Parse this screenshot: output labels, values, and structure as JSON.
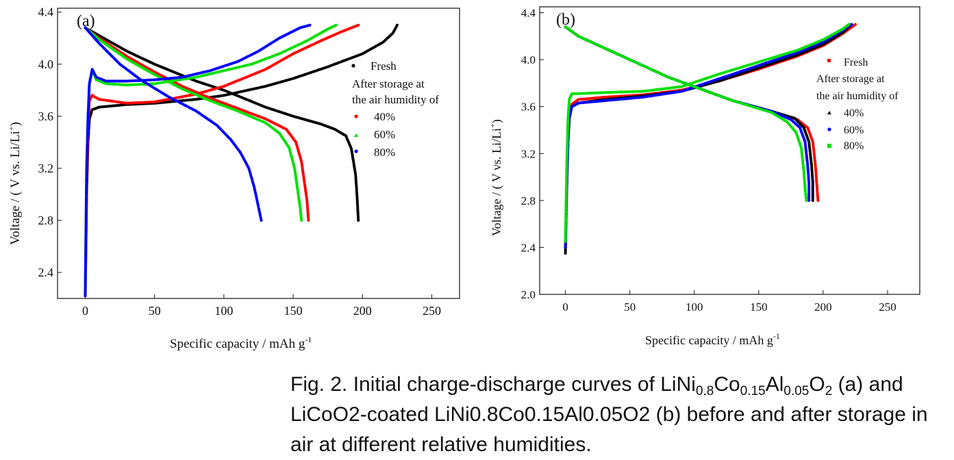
{
  "charts": [
    {
      "panel_label": "(a)",
      "xlabel": "Specific capacity / mAh g",
      "xlabel_sup": "-1",
      "ylabel_main": "Voltage / ( V vs. Li/Li",
      "ylabel_sup": "+",
      "ylabel_end": ")",
      "legend": {
        "fresh": "Fresh",
        "header_line1": "After storage at",
        "header_line2": "the air humidity of",
        "items": [
          "40%",
          "60%",
          "80%"
        ]
      }
    },
    {
      "panel_label": "(b)",
      "xlabel": "Specific capacity / mAh g",
      "xlabel_sup": "-1",
      "ylabel_main": "Voltage / ( V vs. Li/Li",
      "ylabel_sup": "+",
      "ylabel_end": ")",
      "legend": {
        "fresh": "Fresh",
        "header_line1": "After storage at",
        "header_line2": "the air humidity of",
        "items": [
          "40%",
          "60%",
          "80%"
        ]
      }
    }
  ],
  "caption": {
    "prefix": "Fig. 2. Initial charge-discharge curves of LiNi",
    "s1": "0.8",
    "t2": "Co",
    "s2": "0.15",
    "t3": "Al",
    "s3": "0.05",
    "t4": "O",
    "s4": "2",
    "suffix": " (a) and LiCoO2-coated LiNi0.8Co0.15Al0.05O2 (b) before and after storage in air at different relative humidities."
  },
  "chart_data": [
    {
      "type": "scatter",
      "xlim": [
        -20,
        270
      ],
      "ylim": [
        2.2,
        4.43
      ],
      "xticks": [
        0,
        50,
        100,
        150,
        200,
        250
      ],
      "yticks": [
        2.4,
        2.8,
        3.2,
        3.6,
        4.0,
        4.4
      ],
      "grid": false,
      "legend_position": "right",
      "series": [
        {
          "name": "Fresh",
          "color": "#000000",
          "charge": [
            [
              0,
              2.22
            ],
            [
              1,
              3.0
            ],
            [
              2,
              3.4
            ],
            [
              3,
              3.58
            ],
            [
              5,
              3.65
            ],
            [
              10,
              3.67
            ],
            [
              30,
              3.69
            ],
            [
              50,
              3.7
            ],
            [
              80,
              3.73
            ],
            [
              100,
              3.76
            ],
            [
              130,
              3.83
            ],
            [
              150,
              3.89
            ],
            [
              175,
              3.98
            ],
            [
              200,
              4.08
            ],
            [
              215,
              4.17
            ],
            [
              222,
              4.24
            ],
            [
              225,
              4.3
            ]
          ],
          "discharge": [
            [
              0,
              4.28
            ],
            [
              10,
              4.22
            ],
            [
              30,
              4.1
            ],
            [
              50,
              4.0
            ],
            [
              80,
              3.87
            ],
            [
              100,
              3.8
            ],
            [
              130,
              3.67
            ],
            [
              150,
              3.6
            ],
            [
              170,
              3.54
            ],
            [
              180,
              3.5
            ],
            [
              188,
              3.45
            ],
            [
              192,
              3.35
            ],
            [
              195,
              3.15
            ],
            [
              196,
              3.0
            ],
            [
              197,
              2.8
            ]
          ]
        },
        {
          "name": "40%",
          "color": "#ff0000",
          "charge": [
            [
              0,
              2.22
            ],
            [
              1,
              3.1
            ],
            [
              2,
              3.5
            ],
            [
              3,
              3.72
            ],
            [
              5,
              3.76
            ],
            [
              10,
              3.73
            ],
            [
              30,
              3.7
            ],
            [
              50,
              3.71
            ],
            [
              80,
              3.77
            ],
            [
              100,
              3.83
            ],
            [
              130,
              3.96
            ],
            [
              150,
              4.08
            ],
            [
              170,
              4.18
            ],
            [
              185,
              4.25
            ],
            [
              197,
              4.3
            ]
          ],
          "discharge": [
            [
              0,
              4.28
            ],
            [
              10,
              4.2
            ],
            [
              30,
              4.06
            ],
            [
              50,
              3.94
            ],
            [
              70,
              3.83
            ],
            [
              90,
              3.74
            ],
            [
              110,
              3.66
            ],
            [
              130,
              3.58
            ],
            [
              145,
              3.5
            ],
            [
              152,
              3.4
            ],
            [
              156,
              3.25
            ],
            [
              158,
              3.1
            ],
            [
              160,
              2.95
            ],
            [
              161,
              2.8
            ]
          ]
        },
        {
          "name": "60%",
          "color": "#00e000",
          "charge": [
            [
              0,
              2.22
            ],
            [
              1,
              3.2
            ],
            [
              2,
              3.6
            ],
            [
              3,
              3.85
            ],
            [
              5,
              3.95
            ],
            [
              8,
              3.88
            ],
            [
              15,
              3.85
            ],
            [
              30,
              3.84
            ],
            [
              50,
              3.85
            ],
            [
              80,
              3.9
            ],
            [
              100,
              3.95
            ],
            [
              120,
              4.0
            ],
            [
              140,
              4.08
            ],
            [
              160,
              4.18
            ],
            [
              175,
              4.27
            ],
            [
              181,
              4.3
            ]
          ],
          "discharge": [
            [
              0,
              4.28
            ],
            [
              10,
              4.19
            ],
            [
              30,
              4.04
            ],
            [
              50,
              3.92
            ],
            [
              70,
              3.81
            ],
            [
              90,
              3.72
            ],
            [
              110,
              3.64
            ],
            [
              130,
              3.55
            ],
            [
              140,
              3.47
            ],
            [
              147,
              3.36
            ],
            [
              151,
              3.2
            ],
            [
              153,
              3.05
            ],
            [
              155,
              2.9
            ],
            [
              156,
              2.8
            ]
          ]
        },
        {
          "name": "80%",
          "color": "#0000ff",
          "charge": [
            [
              0,
              2.22
            ],
            [
              1,
              3.2
            ],
            [
              2,
              3.6
            ],
            [
              3,
              3.85
            ],
            [
              5,
              3.96
            ],
            [
              8,
              3.9
            ],
            [
              15,
              3.87
            ],
            [
              30,
              3.87
            ],
            [
              50,
              3.88
            ],
            [
              70,
              3.9
            ],
            [
              90,
              3.95
            ],
            [
              110,
              4.02
            ],
            [
              125,
              4.1
            ],
            [
              140,
              4.2
            ],
            [
              155,
              4.28
            ],
            [
              162,
              4.3
            ]
          ],
          "discharge": [
            [
              0,
              4.28
            ],
            [
              10,
              4.16
            ],
            [
              25,
              4.0
            ],
            [
              40,
              3.88
            ],
            [
              60,
              3.75
            ],
            [
              80,
              3.64
            ],
            [
              95,
              3.53
            ],
            [
              105,
              3.42
            ],
            [
              112,
              3.32
            ],
            [
              118,
              3.2
            ],
            [
              122,
              3.05
            ],
            [
              125,
              2.9
            ],
            [
              127,
              2.8
            ]
          ]
        }
      ]
    },
    {
      "type": "scatter",
      "xlim": [
        -20,
        275
      ],
      "ylim": [
        2.0,
        4.45
      ],
      "xticks": [
        0,
        50,
        100,
        150,
        200,
        250
      ],
      "yticks": [
        2.0,
        2.4,
        2.8,
        3.2,
        3.6,
        4.0,
        4.4
      ],
      "grid": false,
      "legend_position": "right",
      "series": [
        {
          "name": "Fresh",
          "color": "#ff0000",
          "charge": [
            [
              0,
              2.38
            ],
            [
              1,
              2.9
            ],
            [
              2,
              3.3
            ],
            [
              3,
              3.5
            ],
            [
              5,
              3.62
            ],
            [
              10,
              3.66
            ],
            [
              30,
              3.68
            ],
            [
              60,
              3.7
            ],
            [
              90,
              3.74
            ],
            [
              120,
              3.82
            ],
            [
              150,
              3.92
            ],
            [
              180,
              4.03
            ],
            [
              200,
              4.12
            ],
            [
              215,
              4.22
            ],
            [
              225,
              4.3
            ]
          ],
          "discharge": [
            [
              0,
              4.28
            ],
            [
              10,
              4.2
            ],
            [
              30,
              4.1
            ],
            [
              50,
              4.0
            ],
            [
              80,
              3.85
            ],
            [
              100,
              3.77
            ],
            [
              130,
              3.65
            ],
            [
              160,
              3.56
            ],
            [
              180,
              3.49
            ],
            [
              188,
              3.42
            ],
            [
              192,
              3.3
            ],
            [
              194,
              3.1
            ],
            [
              195,
              2.95
            ],
            [
              196,
              2.8
            ]
          ]
        },
        {
          "name": "40%",
          "color": "#000000",
          "charge": [
            [
              0,
              2.35
            ],
            [
              1,
              2.9
            ],
            [
              2,
              3.3
            ],
            [
              3,
              3.5
            ],
            [
              5,
              3.6
            ],
            [
              10,
              3.63
            ],
            [
              30,
              3.66
            ],
            [
              60,
              3.69
            ],
            [
              90,
              3.73
            ],
            [
              120,
              3.82
            ],
            [
              150,
              3.93
            ],
            [
              180,
              4.04
            ],
            [
              200,
              4.13
            ],
            [
              215,
              4.23
            ],
            [
              222,
              4.3
            ]
          ],
          "discharge": [
            [
              0,
              4.28
            ],
            [
              10,
              4.2
            ],
            [
              30,
              4.1
            ],
            [
              50,
              4.0
            ],
            [
              80,
              3.85
            ],
            [
              100,
              3.77
            ],
            [
              130,
              3.65
            ],
            [
              160,
              3.56
            ],
            [
              178,
              3.5
            ],
            [
              185,
              3.42
            ],
            [
              189,
              3.3
            ],
            [
              191,
              3.1
            ],
            [
              192,
              2.95
            ],
            [
              192,
              2.8
            ]
          ]
        },
        {
          "name": "60%",
          "color": "#0000ff",
          "charge": [
            [
              0,
              2.4
            ],
            [
              1,
              2.95
            ],
            [
              2,
              3.3
            ],
            [
              3,
              3.5
            ],
            [
              5,
              3.6
            ],
            [
              10,
              3.63
            ],
            [
              30,
              3.65
            ],
            [
              60,
              3.68
            ],
            [
              90,
              3.73
            ],
            [
              120,
              3.84
            ],
            [
              150,
              3.95
            ],
            [
              180,
              4.06
            ],
            [
              200,
              4.15
            ],
            [
              215,
              4.25
            ],
            [
              222,
              4.3
            ]
          ],
          "discharge": [
            [
              0,
              4.28
            ],
            [
              10,
              4.2
            ],
            [
              30,
              4.1
            ],
            [
              50,
              4.0
            ],
            [
              80,
              3.85
            ],
            [
              100,
              3.77
            ],
            [
              130,
              3.65
            ],
            [
              160,
              3.56
            ],
            [
              175,
              3.49
            ],
            [
              182,
              3.42
            ],
            [
              186,
              3.3
            ],
            [
              188,
              3.1
            ],
            [
              189,
              2.95
            ],
            [
              189,
              2.8
            ]
          ]
        },
        {
          "name": "80%",
          "color": "#00e000",
          "charge": [
            [
              0,
              2.45
            ],
            [
              1,
              3.1
            ],
            [
              2,
              3.5
            ],
            [
              3,
              3.66
            ],
            [
              5,
              3.71
            ],
            [
              10,
              3.71
            ],
            [
              30,
              3.72
            ],
            [
              60,
              3.73
            ],
            [
              90,
              3.77
            ],
            [
              120,
              3.88
            ],
            [
              150,
              3.98
            ],
            [
              180,
              4.08
            ],
            [
              200,
              4.17
            ],
            [
              215,
              4.26
            ],
            [
              220,
              4.3
            ]
          ],
          "discharge": [
            [
              0,
              4.28
            ],
            [
              10,
              4.2
            ],
            [
              30,
              4.1
            ],
            [
              50,
              4.0
            ],
            [
              80,
              3.85
            ],
            [
              100,
              3.77
            ],
            [
              130,
              3.65
            ],
            [
              160,
              3.55
            ],
            [
              172,
              3.47
            ],
            [
              179,
              3.38
            ],
            [
              183,
              3.25
            ],
            [
              185,
              3.05
            ],
            [
              186,
              2.9
            ],
            [
              187,
              2.8
            ]
          ]
        }
      ]
    }
  ]
}
